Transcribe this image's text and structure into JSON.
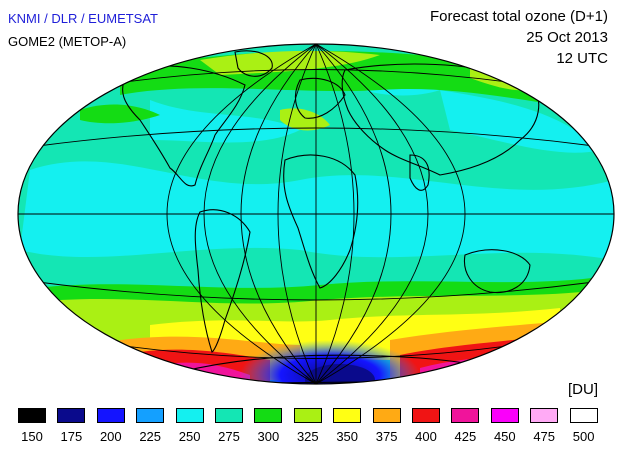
{
  "header": {
    "credit": "KNMI / DLR / EUMETSAT",
    "instrument": "GOME2 (METOP-A)",
    "title": "Forecast total ozone (D+1)",
    "date": "25 Oct 2013",
    "time": "12 UTC"
  },
  "map": {
    "projection": "Hammer-Aitoff world map",
    "variable": "total ozone"
  },
  "legend": {
    "unit": "[DU]",
    "bins": [
      {
        "label": "150",
        "color": "#000000"
      },
      {
        "label": "175",
        "color": "#0a0a8c"
      },
      {
        "label": "200",
        "color": "#1414ff"
      },
      {
        "label": "225",
        "color": "#14a0ff"
      },
      {
        "label": "250",
        "color": "#14f0f0"
      },
      {
        "label": "275",
        "color": "#14e6b4"
      },
      {
        "label": "300",
        "color": "#14dc14"
      },
      {
        "label": "325",
        "color": "#aaf014"
      },
      {
        "label": "350",
        "color": "#ffff14"
      },
      {
        "label": "375",
        "color": "#ffaa14"
      },
      {
        "label": "400",
        "color": "#f01414"
      },
      {
        "label": "425",
        "color": "#f0149b"
      },
      {
        "label": "450",
        "color": "#fa00fa"
      },
      {
        "label": "475",
        "color": "#ffaaf5"
      },
      {
        "label": "500",
        "color": "#ffffff"
      }
    ]
  }
}
